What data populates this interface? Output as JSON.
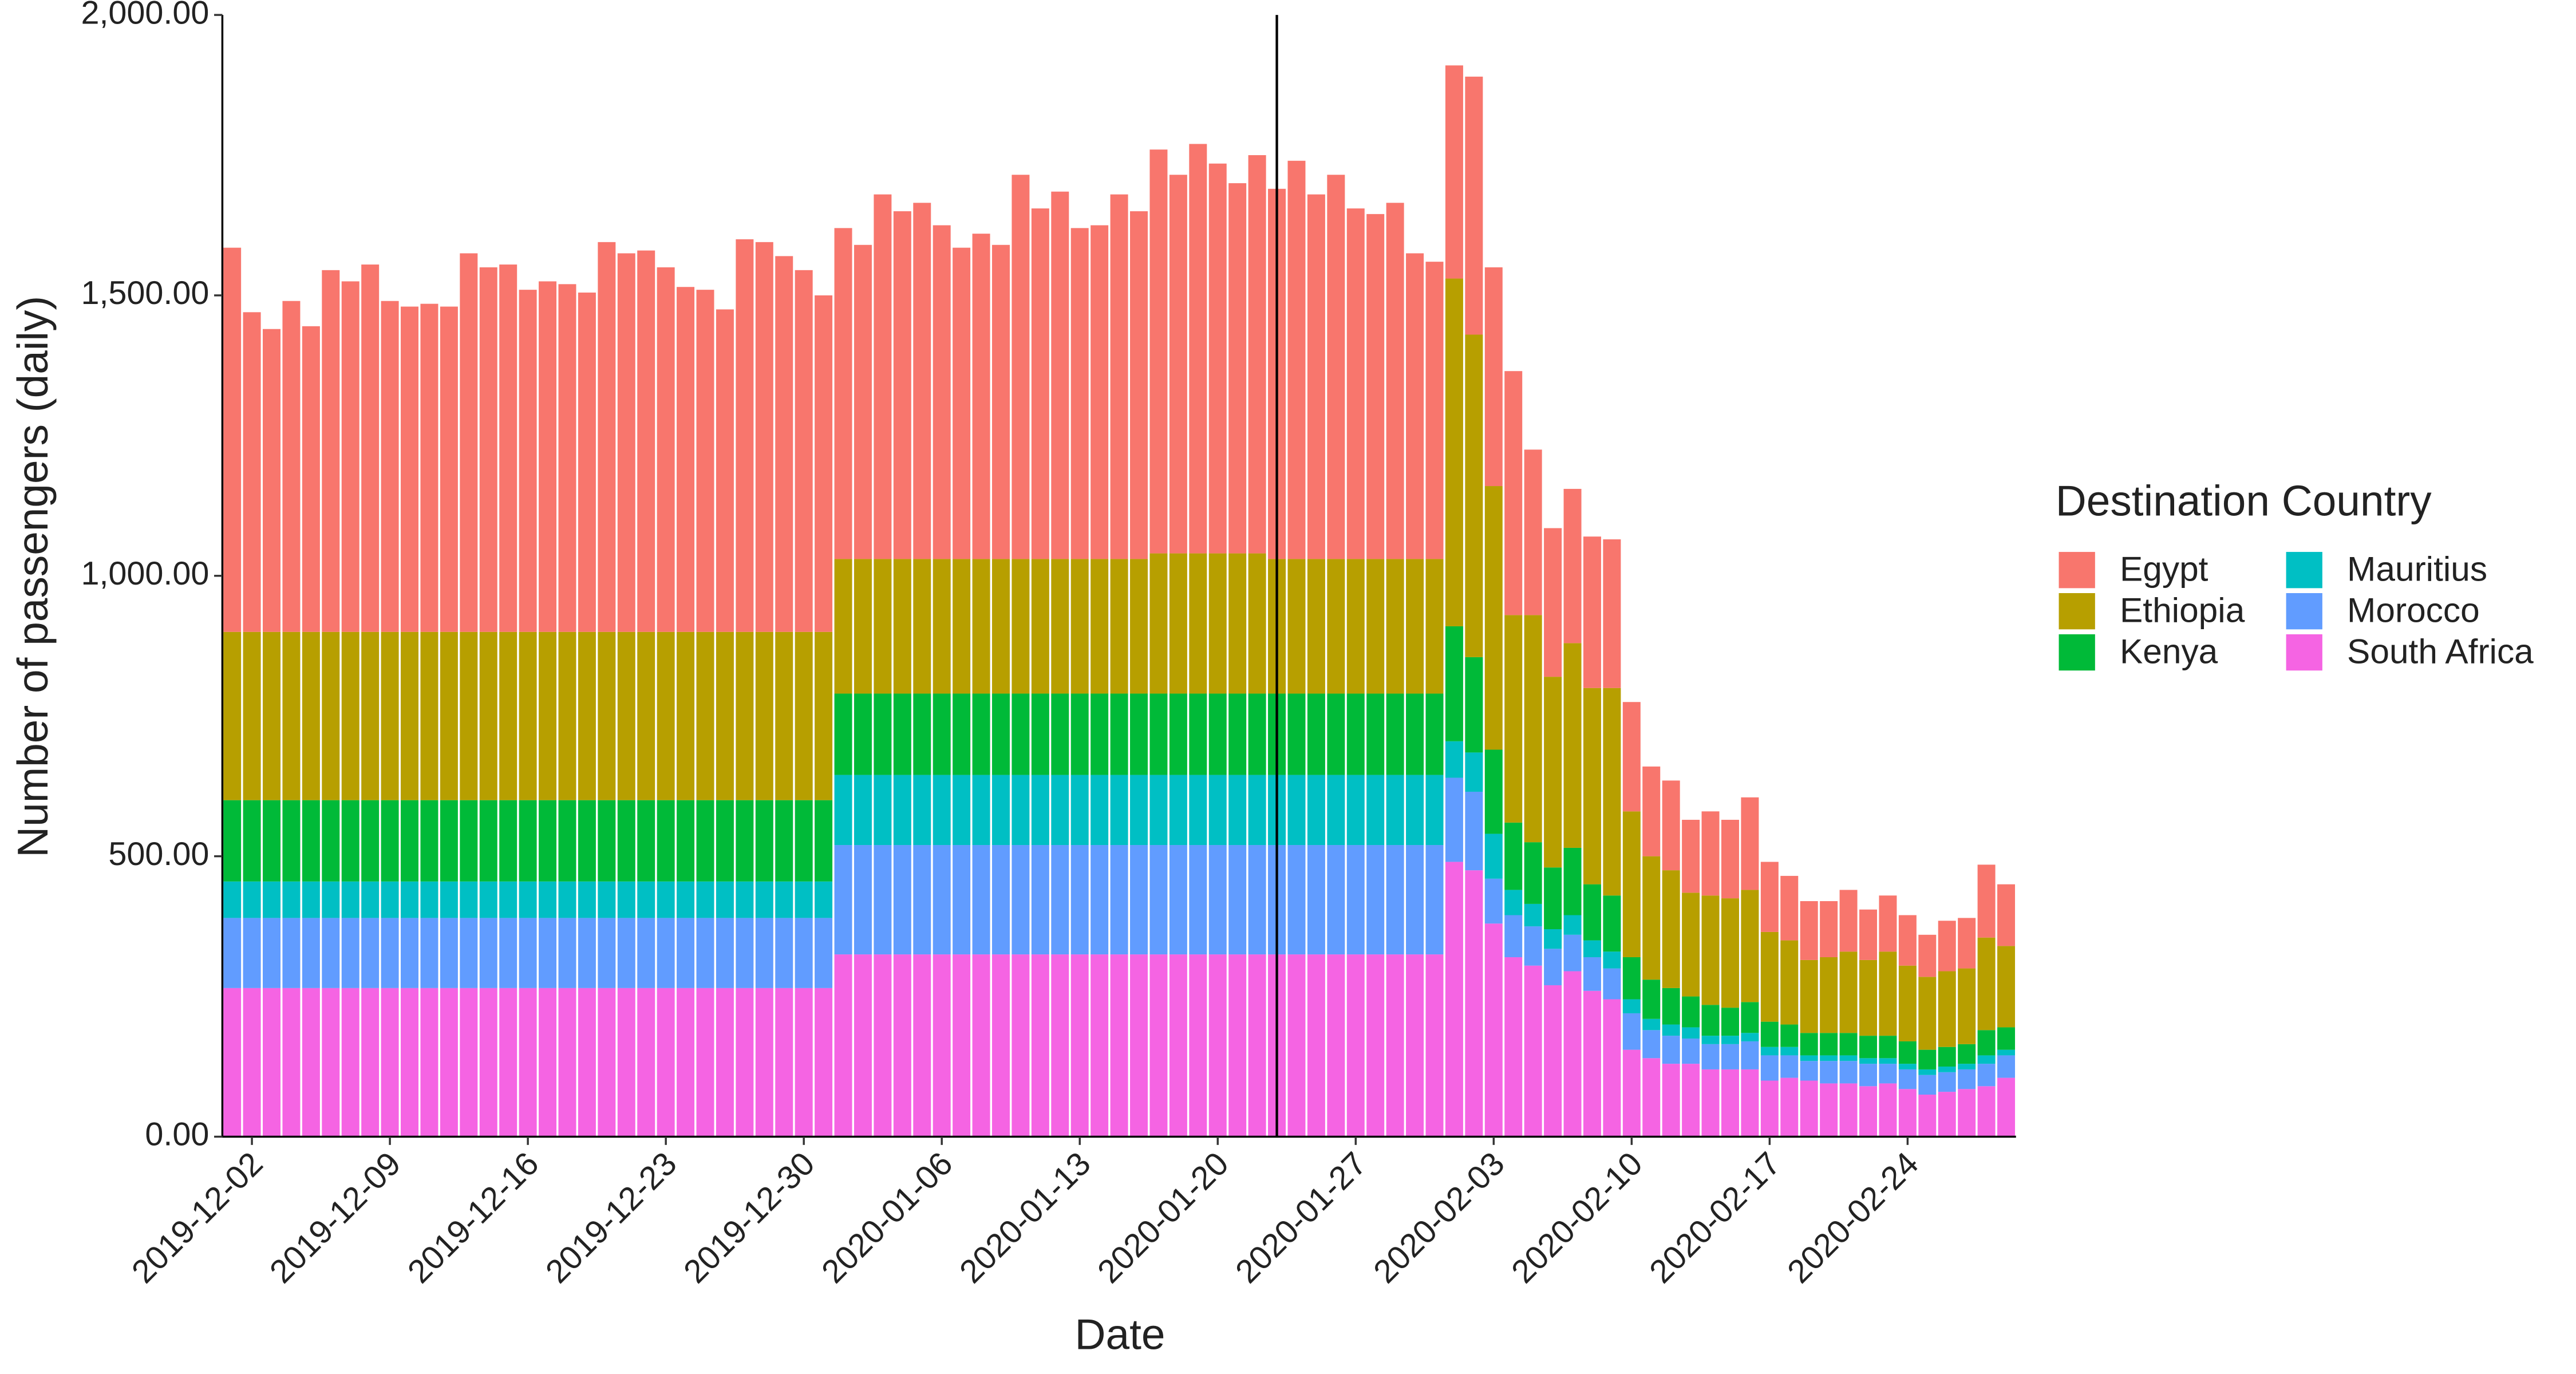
{
  "chart_data": {
    "type": "stacked_bar",
    "x_label": "Date",
    "y_label": "Number of passengers (daily)",
    "legend_title": "Destination Country",
    "legend": "right",
    "x": [
      "2019-12-01",
      "2019-12-02",
      "2019-12-03",
      "2019-12-04",
      "2019-12-05",
      "2019-12-06",
      "2019-12-07",
      "2019-12-08",
      "2019-12-09",
      "2019-12-10",
      "2019-12-11",
      "2019-12-12",
      "2019-12-13",
      "2019-12-14",
      "2019-12-15",
      "2019-12-16",
      "2019-12-17",
      "2019-12-18",
      "2019-12-19",
      "2019-12-20",
      "2019-12-21",
      "2019-12-22",
      "2019-12-23",
      "2019-12-24",
      "2019-12-25",
      "2019-12-26",
      "2019-12-27",
      "2019-12-28",
      "2019-12-29",
      "2019-12-30",
      "2019-12-31",
      "2020-01-01",
      "2020-01-02",
      "2020-01-03",
      "2020-01-04",
      "2020-01-05",
      "2020-01-06",
      "2020-01-07",
      "2020-01-08",
      "2020-01-09",
      "2020-01-10",
      "2020-01-11",
      "2020-01-12",
      "2020-01-13",
      "2020-01-14",
      "2020-01-15",
      "2020-01-16",
      "2020-01-17",
      "2020-01-18",
      "2020-01-19",
      "2020-01-20",
      "2020-01-21",
      "2020-01-22",
      "2020-01-23",
      "2020-01-24",
      "2020-01-25",
      "2020-01-26",
      "2020-01-27",
      "2020-01-28",
      "2020-01-29",
      "2020-01-30",
      "2020-01-31",
      "2020-02-01",
      "2020-02-02",
      "2020-02-03",
      "2020-02-04",
      "2020-02-05",
      "2020-02-06",
      "2020-02-07",
      "2020-02-08",
      "2020-02-09",
      "2020-02-10",
      "2020-02-11",
      "2020-02-12",
      "2020-02-13",
      "2020-02-14",
      "2020-02-15",
      "2020-02-16",
      "2020-02-17",
      "2020-02-18",
      "2020-02-19",
      "2020-02-20",
      "2020-02-21",
      "2020-02-22",
      "2020-02-23",
      "2020-02-24",
      "2020-02-25",
      "2020-02-26",
      "2020-02-27",
      "2020-02-28",
      "2020-02-29"
    ],
    "xticks": [
      "2019-12-02",
      "2019-12-09",
      "2019-12-16",
      "2019-12-23",
      "2019-12-30",
      "2020-01-06",
      "2020-01-13",
      "2020-01-20",
      "2020-01-27",
      "2020-02-03",
      "2020-02-10",
      "2020-02-17",
      "2020-02-24"
    ],
    "vline": "2020-01-23",
    "ylim": [
      0,
      2000
    ],
    "yticks": [
      {
        "value": 0,
        "label": "0.00"
      },
      {
        "value": 500,
        "label": "500.00"
      },
      {
        "value": 1000,
        "label": "1,000.00"
      },
      {
        "value": 1500,
        "label": "1,500.00"
      },
      {
        "value": 2000,
        "label": "2,000.00"
      }
    ],
    "series": [
      {
        "name": "Egypt",
        "color": "#F8766D",
        "values": [
          685,
          570,
          540,
          590,
          545,
          645,
          625,
          655,
          590,
          580,
          585,
          580,
          675,
          650,
          655,
          610,
          625,
          620,
          605,
          695,
          675,
          680,
          650,
          615,
          610,
          575,
          700,
          695,
          670,
          645,
          600,
          590,
          560,
          650,
          620,
          635,
          595,
          555,
          580,
          560,
          685,
          625,
          655,
          590,
          595,
          650,
          620,
          720,
          675,
          730,
          695,
          660,
          710,
          660,
          710,
          650,
          685,
          625,
          615,
          635,
          545,
          530,
          380,
          460,
          390,
          435,
          295,
          265,
          275,
          270,
          265,
          195,
          160,
          160,
          130,
          150,
          140,
          165,
          125,
          115,
          105,
          100,
          110,
          90,
          100,
          90,
          75,
          90,
          90,
          130,
          110
        ]
      },
      {
        "name": "Ethiopia",
        "color": "#B79F00",
        "values": [
          300,
          300,
          300,
          300,
          300,
          300,
          300,
          300,
          300,
          300,
          300,
          300,
          300,
          300,
          300,
          300,
          300,
          300,
          300,
          300,
          300,
          300,
          300,
          300,
          300,
          300,
          300,
          300,
          300,
          300,
          300,
          240,
          240,
          240,
          240,
          240,
          240,
          240,
          240,
          240,
          240,
          240,
          240,
          240,
          240,
          240,
          240,
          250,
          250,
          250,
          250,
          250,
          250,
          240,
          240,
          240,
          240,
          240,
          240,
          240,
          240,
          240,
          620,
          575,
          470,
          370,
          405,
          340,
          365,
          350,
          370,
          260,
          220,
          210,
          185,
          195,
          195,
          200,
          160,
          150,
          130,
          135,
          145,
          135,
          150,
          135,
          130,
          135,
          135,
          165,
          145
        ]
      },
      {
        "name": "Kenya",
        "color": "#00BA38",
        "values": [
          145,
          145,
          145,
          145,
          145,
          145,
          145,
          145,
          145,
          145,
          145,
          145,
          145,
          145,
          145,
          145,
          145,
          145,
          145,
          145,
          145,
          145,
          145,
          145,
          145,
          145,
          145,
          145,
          145,
          145,
          145,
          145,
          145,
          145,
          145,
          145,
          145,
          145,
          145,
          145,
          145,
          145,
          145,
          145,
          145,
          145,
          145,
          145,
          145,
          145,
          145,
          145,
          145,
          145,
          145,
          145,
          145,
          145,
          145,
          145,
          145,
          145,
          205,
          170,
          150,
          120,
          110,
          110,
          120,
          100,
          100,
          75,
          70,
          65,
          55,
          55,
          50,
          55,
          45,
          40,
          40,
          40,
          40,
          40,
          40,
          40,
          35,
          35,
          35,
          45,
          40
        ]
      },
      {
        "name": "Mauritius",
        "color": "#00BFC4",
        "values": [
          65,
          65,
          65,
          65,
          65,
          65,
          65,
          65,
          65,
          65,
          65,
          65,
          65,
          65,
          65,
          65,
          65,
          65,
          65,
          65,
          65,
          65,
          65,
          65,
          65,
          65,
          65,
          65,
          65,
          65,
          65,
          125,
          125,
          125,
          125,
          125,
          125,
          125,
          125,
          125,
          125,
          125,
          125,
          125,
          125,
          125,
          125,
          125,
          125,
          125,
          125,
          125,
          125,
          125,
          125,
          125,
          125,
          125,
          125,
          125,
          125,
          125,
          65,
          70,
          80,
          45,
          40,
          35,
          35,
          30,
          30,
          25,
          20,
          20,
          20,
          15,
          15,
          15,
          15,
          15,
          10,
          10,
          10,
          10,
          10,
          10,
          10,
          10,
          10,
          15,
          10
        ]
      },
      {
        "name": "Morocco",
        "color": "#619CFF",
        "values": [
          125,
          125,
          125,
          125,
          125,
          125,
          125,
          125,
          125,
          125,
          125,
          125,
          125,
          125,
          125,
          125,
          125,
          125,
          125,
          125,
          125,
          125,
          125,
          125,
          125,
          125,
          125,
          125,
          125,
          125,
          125,
          195,
          195,
          195,
          195,
          195,
          195,
          195,
          195,
          195,
          195,
          195,
          195,
          195,
          195,
          195,
          195,
          195,
          195,
          195,
          195,
          195,
          195,
          195,
          195,
          195,
          195,
          195,
          195,
          195,
          195,
          195,
          150,
          140,
          80,
          75,
          70,
          65,
          65,
          60,
          55,
          65,
          50,
          50,
          45,
          45,
          45,
          50,
          45,
          40,
          35,
          40,
          40,
          40,
          35,
          35,
          35,
          35,
          35,
          40,
          40
        ]
      },
      {
        "name": "South Africa",
        "color": "#F564E3",
        "values": [
          265,
          265,
          265,
          265,
          265,
          265,
          265,
          265,
          265,
          265,
          265,
          265,
          265,
          265,
          265,
          265,
          265,
          265,
          265,
          265,
          265,
          265,
          265,
          265,
          265,
          265,
          265,
          265,
          265,
          265,
          265,
          325,
          325,
          325,
          325,
          325,
          325,
          325,
          325,
          325,
          325,
          325,
          325,
          325,
          325,
          325,
          325,
          325,
          325,
          325,
          325,
          325,
          325,
          325,
          325,
          325,
          325,
          325,
          325,
          325,
          325,
          325,
          490,
          475,
          380,
          320,
          305,
          270,
          295,
          260,
          245,
          155,
          140,
          130,
          130,
          120,
          120,
          120,
          100,
          105,
          100,
          95,
          95,
          90,
          95,
          85,
          75,
          80,
          85,
          90,
          105
        ]
      }
    ]
  }
}
